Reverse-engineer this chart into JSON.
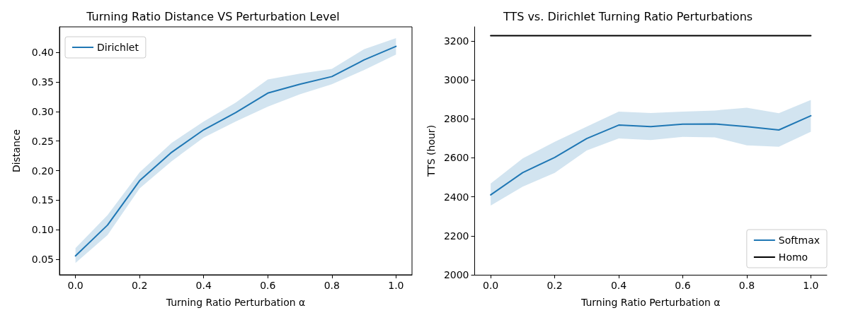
{
  "chart_data": [
    {
      "type": "line",
      "title": "Turning Ratio Distance VS Perturbation Level",
      "xlabel": "Turning Ratio Perturbation α",
      "ylabel": "Distance",
      "x": [
        0,
        0.1,
        0.2,
        0.3,
        0.4,
        0.5,
        0.6,
        0.7,
        0.8,
        0.9,
        1.0
      ],
      "series": [
        {
          "name": "Dirichlet",
          "color": "#1f77b4",
          "values": [
            0.056,
            0.108,
            0.183,
            0.231,
            0.269,
            0.298,
            0.331,
            0.346,
            0.359,
            0.387,
            0.41
          ],
          "lower": [
            0.044,
            0.091,
            0.17,
            0.216,
            0.256,
            0.283,
            0.308,
            0.329,
            0.346,
            0.37,
            0.396
          ],
          "upper": [
            0.069,
            0.125,
            0.197,
            0.247,
            0.283,
            0.315,
            0.354,
            0.364,
            0.372,
            0.405,
            0.424
          ]
        }
      ],
      "xlim": [
        -0.05,
        1.05
      ],
      "xticks": [
        {
          "value": 0,
          "label": "0.0"
        },
        {
          "value": 0.2,
          "label": "0.2"
        },
        {
          "value": 0.4,
          "label": "0.4"
        },
        {
          "value": 0.6,
          "label": "0.6"
        },
        {
          "value": 0.8,
          "label": "0.8"
        },
        {
          "value": 1,
          "label": "1.0"
        }
      ],
      "ylim": [
        0.024,
        0.443
      ],
      "yticks": [
        0.05,
        {
          "value": 0.1,
          "label": "0.10"
        },
        0.15,
        {
          "value": 0.2,
          "label": "0.20"
        },
        0.25,
        {
          "value": 0.3,
          "label": "0.30"
        },
        0.35,
        {
          "value": 0.4,
          "label": "0.40"
        }
      ],
      "grid": false,
      "legend": "top left",
      "marker": "none",
      "line_style": "solid"
    },
    {
      "type": "line",
      "title": "TTS vs. Dirichlet Turning Ratio Perturbations",
      "xlabel": "Turning Ratio Perturbation α",
      "ylabel": "TTS (hour)",
      "series": [
        {
          "name": "Softmax",
          "color": "#1f77b4",
          "x": [
            0,
            0.1,
            0.2,
            0.3,
            0.4,
            0.5,
            0.6,
            0.7,
            0.8,
            0.9,
            1.0
          ],
          "values": [
            2410,
            2524,
            2602,
            2699,
            2768,
            2760,
            2773,
            2774,
            2760,
            2743,
            2816
          ],
          "lower": [
            2355,
            2452,
            2523,
            2638,
            2699,
            2691,
            2708,
            2705,
            2664,
            2657,
            2734
          ],
          "upper": [
            2468,
            2597,
            2682,
            2760,
            2837,
            2830,
            2837,
            2843,
            2857,
            2829,
            2897
          ]
        },
        {
          "name": "Homo",
          "color": "#000000",
          "x": [
            0,
            1.0
          ],
          "values": [
            3227,
            3227
          ]
        }
      ],
      "xlim": [
        -0.05,
        1.05
      ],
      "xticks": [
        {
          "value": 0,
          "label": "0.0"
        },
        {
          "value": 0.2,
          "label": "0.2"
        },
        {
          "value": 0.4,
          "label": "0.4"
        },
        {
          "value": 0.6,
          "label": "0.6"
        },
        {
          "value": 0.8,
          "label": "0.8"
        },
        {
          "value": 1,
          "label": "1.0"
        }
      ],
      "ylim": [
        2000,
        3272
      ],
      "yticks": [
        2000,
        2200,
        2400,
        2600,
        2800,
        3000,
        3200
      ],
      "grid": false,
      "legend": "bottom right",
      "marker": "none",
      "line_style": "solid"
    }
  ]
}
